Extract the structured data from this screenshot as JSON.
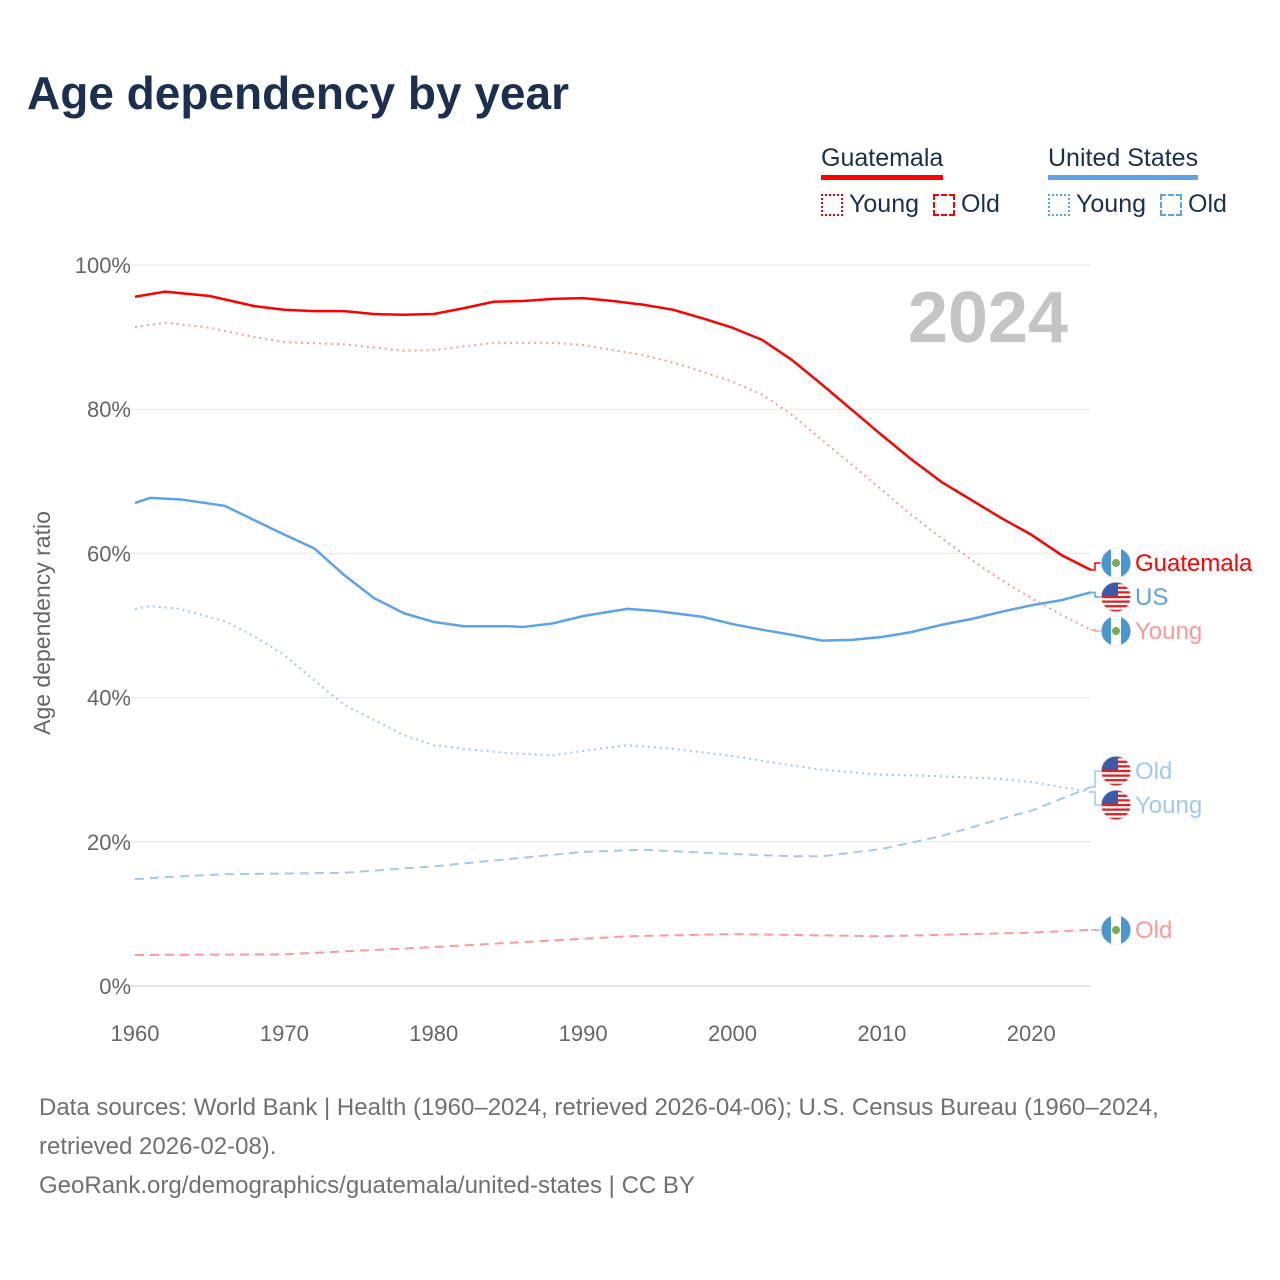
{
  "title": "Age dependency by year",
  "legend": {
    "guatemala": {
      "name": "Guatemala",
      "young": "Young",
      "old": "Old",
      "color": "#ff0000"
    },
    "us": {
      "name": "United States",
      "young": "Young",
      "old": "Old",
      "color": "#5ba3e8"
    }
  },
  "year_watermark": "2024",
  "end_labels": {
    "gt_total": "Guatemala",
    "us_total": "US",
    "gt_young": "Young",
    "us_old": "Old",
    "us_young": "Young",
    "gt_old": "Old"
  },
  "chart_data": {
    "type": "line",
    "title": "Age dependency by year",
    "xlabel": "",
    "ylabel": "Age dependency ratio",
    "xlim": [
      1960,
      2024
    ],
    "ylim": [
      0,
      100
    ],
    "x_ticks": [
      "1960",
      "1970",
      "1980",
      "1990",
      "2000",
      "2010",
      "2020"
    ],
    "y_ticks": [
      "0%",
      "20%",
      "40%",
      "60%",
      "80%",
      "100%"
    ],
    "grid": true,
    "legend_position": "top-right",
    "series": [
      {
        "name": "Guatemala",
        "style": "solid",
        "color": "#ff0000",
        "x": [
          1960,
          1962,
          1965,
          1968,
          1970,
          1972,
          1974,
          1976,
          1978,
          1980,
          1982,
          1984,
          1986,
          1988,
          1990,
          1992,
          1994,
          1996,
          1998,
          2000,
          2002,
          2004,
          2006,
          2008,
          2010,
          2012,
          2014,
          2016,
          2018,
          2020,
          2022,
          2024
        ],
        "y": [
          95.6,
          96.3,
          95.7,
          94.3,
          93.8,
          93.6,
          93.6,
          93.2,
          93.1,
          93.2,
          94.0,
          94.9,
          95.0,
          95.3,
          95.4,
          95.0,
          94.5,
          93.8,
          92.6,
          91.3,
          89.6,
          86.8,
          83.4,
          79.9,
          76.4,
          73.0,
          69.9,
          67.4,
          64.9,
          62.6,
          59.8,
          57.7
        ]
      },
      {
        "name": "Guatemala Young",
        "style": "dotted",
        "color": "#ff9999",
        "x": [
          1960,
          1962,
          1965,
          1968,
          1970,
          1974,
          1978,
          1980,
          1984,
          1988,
          1990,
          1994,
          1996,
          1998,
          2000,
          2002,
          2004,
          2006,
          2008,
          2010,
          2012,
          2014,
          2016,
          2018,
          2020,
          2022,
          2024
        ],
        "y": [
          91.4,
          92.0,
          91.3,
          90.0,
          89.3,
          89.0,
          88.1,
          88.2,
          89.2,
          89.2,
          88.9,
          87.5,
          86.5,
          85.2,
          83.8,
          82.0,
          79.2,
          75.7,
          72.3,
          68.8,
          65.3,
          62.1,
          59.1,
          56.3,
          53.8,
          51.5,
          49.4
        ]
      },
      {
        "name": "Guatemala Old",
        "style": "dashed",
        "color": "#ff9999",
        "x": [
          1960,
          1970,
          1980,
          1993,
          2000,
          2010,
          2020,
          2024
        ],
        "y": [
          4.3,
          4.4,
          5.4,
          6.9,
          7.2,
          6.9,
          7.4,
          7.8
        ]
      },
      {
        "name": "United States",
        "style": "solid",
        "color": "#5ba3e8",
        "x": [
          1960,
          1961,
          1963,
          1966,
          1968,
          1970,
          1972,
          1974,
          1976,
          1978,
          1980,
          1982,
          1985,
          1986,
          1988,
          1990,
          1992,
          1993,
          1995,
          1998,
          2000,
          2002,
          2004,
          2006,
          2008,
          2010,
          2012,
          2014,
          2016,
          2018,
          2020,
          2022,
          2024
        ],
        "y": [
          67.0,
          67.7,
          67.5,
          66.6,
          64.6,
          62.6,
          60.7,
          57.0,
          53.8,
          51.7,
          50.5,
          49.9,
          49.9,
          49.8,
          50.3,
          51.3,
          52.0,
          52.3,
          52.0,
          51.2,
          50.2,
          49.4,
          48.7,
          47.9,
          48.0,
          48.4,
          49.1,
          50.1,
          50.9,
          51.9,
          52.8,
          53.5,
          54.6
        ]
      },
      {
        "name": "United States Young",
        "style": "dotted",
        "color": "#a3c8ef",
        "x": [
          1960,
          1961,
          1963,
          1966,
          1968,
          1970,
          1972,
          1974,
          1976,
          1978,
          1980,
          1982,
          1985,
          1988,
          1990,
          1993,
          1996,
          2000,
          2003,
          2006,
          2010,
          2014,
          2018,
          2020,
          2024
        ],
        "y": [
          52.3,
          52.7,
          52.3,
          50.6,
          48.5,
          45.9,
          42.4,
          39.0,
          36.9,
          34.8,
          33.4,
          32.9,
          32.3,
          32.0,
          32.6,
          33.4,
          32.9,
          31.9,
          30.9,
          30.0,
          29.3,
          29.1,
          28.7,
          28.3,
          26.9
        ]
      },
      {
        "name": "United States Old",
        "style": "dashed",
        "color": "#a3c8ef",
        "x": [
          1960,
          1962,
          1966,
          1974,
          1980,
          1986,
          1990,
          1994,
          2000,
          2004,
          2006,
          2010,
          2014,
          2018,
          2020,
          2024
        ],
        "y": [
          14.8,
          15.1,
          15.5,
          15.7,
          16.6,
          17.8,
          18.6,
          18.9,
          18.3,
          18.0,
          18.0,
          19.0,
          20.8,
          23.2,
          24.3,
          27.6
        ]
      }
    ]
  },
  "footer": {
    "sources": "Data sources: World Bank | Health (1960–2024, retrieved 2026-04-06); U.S. Census Bureau (1960–2024, retrieved 2026-02-08).",
    "link": "GeoRank.org/demographics/guatemala/united-states",
    "license": " | CC BY"
  }
}
